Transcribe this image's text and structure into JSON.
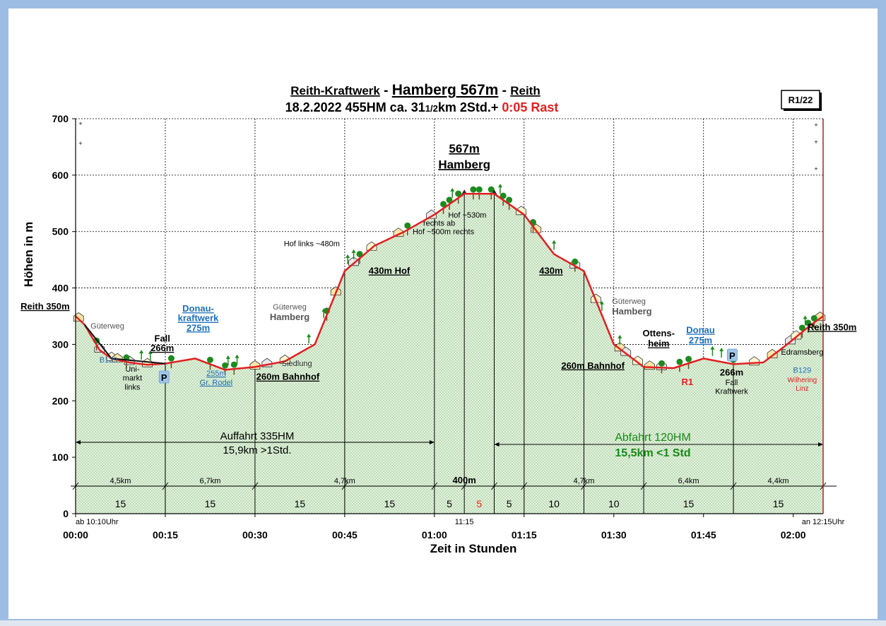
{
  "window": {
    "frame_color": "#9ebde5",
    "background": "#ffffff"
  },
  "chart_data": {
    "type": "area",
    "title": {
      "part1": "Reith-Kraftwerk",
      "sep1": " - ",
      "part2": "Hamberg 567m",
      "sep2": " - ",
      "part3": "Reith"
    },
    "subtitle": {
      "text": "18.2.2022   455HM    ca. 31",
      "frac": "1/2",
      "km": "km     2Std.+ ",
      "rast": "0:05 Rast"
    },
    "tour_id": "R1/22",
    "ylabel": "Höhen in m",
    "xlabel": "Zeit in Stunden",
    "ylim": [
      0,
      700
    ],
    "xlim_min": [
      0,
      125
    ],
    "y_ticks": [
      "0",
      "100",
      "200",
      "300",
      "400",
      "500",
      "600",
      "700"
    ],
    "x_ticks": [
      {
        "min": 0,
        "label": "00:00"
      },
      {
        "min": 15,
        "label": "00:15"
      },
      {
        "min": 30,
        "label": "00:30"
      },
      {
        "min": 45,
        "label": "00:45"
      },
      {
        "min": 60,
        "label": "01:00"
      },
      {
        "min": 75,
        "label": "01:15"
      },
      {
        "min": 90,
        "label": "01:30"
      },
      {
        "min": 105,
        "label": "01:45"
      },
      {
        "min": 120,
        "label": "02:00"
      }
    ],
    "time_notes": [
      {
        "min": 0,
        "label": "ab 10:10Uhr"
      },
      {
        "min": 65,
        "label": "11:15"
      },
      {
        "min": 125,
        "label": "an 12:15Uhr"
      }
    ],
    "series": [
      {
        "color": "#e02020",
        "x": [
          0,
          1.5,
          4,
          6,
          9,
          12,
          15,
          20,
          25,
          30,
          35,
          40,
          45,
          50,
          55,
          60,
          65,
          70,
          75,
          80,
          85,
          90,
          95,
          100,
          105,
          110,
          115,
          119,
          123,
          125
        ],
        "y": [
          350,
          335,
          290,
          275,
          268,
          264,
          266,
          275,
          255,
          260,
          270,
          300,
          430,
          475,
          500,
          530,
          567,
          567,
          530,
          460,
          430,
          300,
          260,
          258,
          275,
          265,
          268,
          300,
          335,
          350
        ]
      }
    ],
    "segments": {
      "boundaries_min": [
        0,
        15,
        30,
        45,
        60,
        65,
        70,
        75,
        85,
        95,
        110,
        125
      ],
      "distances": [
        {
          "min": 7.5,
          "label": "4,5km"
        },
        {
          "min": 22.5,
          "label": "6,7km"
        },
        {
          "min": 45,
          "label": "4,7km"
        },
        {
          "min": 65,
          "label": "400m"
        },
        {
          "min": 85,
          "label": "4,7km"
        },
        {
          "min": 102.5,
          "label": "6,4km"
        },
        {
          "min": 117.5,
          "label": "4,4km"
        }
      ],
      "durations": [
        {
          "min": 7.5,
          "label": "15",
          "color": "#000000"
        },
        {
          "min": 22.5,
          "label": "15",
          "color": "#000000"
        },
        {
          "min": 37.5,
          "label": "15",
          "color": "#000000"
        },
        {
          "min": 52.5,
          "label": "15",
          "color": "#000000"
        },
        {
          "min": 62.5,
          "label": "5",
          "color": "#000000"
        },
        {
          "min": 67.5,
          "label": "5",
          "color": "#e03010"
        },
        {
          "min": 72.5,
          "label": "5",
          "color": "#000000"
        },
        {
          "min": 80,
          "label": "10",
          "color": "#000000"
        },
        {
          "min": 90,
          "label": "10",
          "color": "#000000"
        },
        {
          "min": 102.5,
          "label": "15",
          "color": "#000000"
        },
        {
          "min": 117.5,
          "label": "15",
          "color": "#000000"
        }
      ]
    },
    "summaries": {
      "ascent": {
        "line1": "Auffahrt  335HM",
        "line2": "15,9km   >1Std.",
        "color": "#000000",
        "x_range_min": [
          0,
          60
        ]
      },
      "descent": {
        "line1": "Abfahrt 120HM",
        "line2": "15,5km   <1 Std",
        "color": "#1a8a1a",
        "x_range_min": [
          70,
          125
        ]
      }
    },
    "annotations": [
      {
        "min": -1,
        "alt": 362,
        "text": "Reith 350m",
        "color": "#000000",
        "bold": true,
        "underline": true,
        "size": 13,
        "anchor": "end"
      },
      {
        "min": 2.5,
        "alt": 328,
        "text": "Güterweg",
        "color": "#555555",
        "bold": false,
        "underline": false,
        "size": 11,
        "anchor": "start"
      },
      {
        "min": 5.5,
        "alt": 268,
        "text": "B129",
        "color": "#1f6fb8",
        "bold": false,
        "underline": false,
        "size": 11,
        "anchor": "middle"
      },
      {
        "min": 9.5,
        "alt": 252,
        "text": "Uni-",
        "color": "#000000",
        "bold": false,
        "underline": false,
        "size": 11,
        "anchor": "middle"
      },
      {
        "min": 9.5,
        "alt": 236,
        "text": "markt",
        "color": "#000000",
        "bold": false,
        "underline": false,
        "size": 11,
        "anchor": "middle"
      },
      {
        "min": 9.5,
        "alt": 220,
        "text": "links",
        "color": "#000000",
        "bold": false,
        "underline": false,
        "size": 11,
        "anchor": "middle"
      },
      {
        "min": 14.5,
        "alt": 305,
        "text": "Fall",
        "color": "#000000",
        "bold": true,
        "underline": false,
        "size": 13,
        "anchor": "middle"
      },
      {
        "min": 14.5,
        "alt": 288,
        "text": "266m",
        "color": "#000000",
        "bold": true,
        "underline": true,
        "size": 13,
        "anchor": "middle"
      },
      {
        "min": 20.5,
        "alt": 358,
        "text": "Donau-",
        "color": "#1f6fb8",
        "bold": true,
        "underline": true,
        "size": 13,
        "anchor": "middle"
      },
      {
        "min": 20.5,
        "alt": 341,
        "text": "kraftwerk",
        "color": "#1f6fb8",
        "bold": true,
        "underline": true,
        "size": 13,
        "anchor": "middle"
      },
      {
        "min": 20.5,
        "alt": 324,
        "text": "275m",
        "color": "#1f6fb8",
        "bold": true,
        "underline": true,
        "size": 13,
        "anchor": "middle"
      },
      {
        "min": 23.5,
        "alt": 244,
        "text": "255m",
        "color": "#1f6fb8",
        "bold": false,
        "underline": true,
        "size": 11,
        "anchor": "middle"
      },
      {
        "min": 23.5,
        "alt": 228,
        "text": "Gr. Rodel",
        "color": "#1f6fb8",
        "bold": false,
        "underline": true,
        "size": 11,
        "anchor": "middle"
      },
      {
        "min": 35.5,
        "alt": 237,
        "text": "260m Bahnhof",
        "color": "#000000",
        "bold": true,
        "underline": true,
        "size": 13,
        "anchor": "middle"
      },
      {
        "min": 35.8,
        "alt": 362,
        "text": "Güterweg",
        "color": "#555555",
        "bold": false,
        "underline": false,
        "size": 11,
        "anchor": "middle"
      },
      {
        "min": 35.8,
        "alt": 343,
        "text": "Hamberg",
        "color": "#555555",
        "bold": true,
        "underline": false,
        "size": 13,
        "anchor": "middle"
      },
      {
        "min": 37.0,
        "alt": 262,
        "text": "Siedlung",
        "color": "#333333",
        "bold": false,
        "underline": false,
        "size": 11,
        "anchor": "middle"
      },
      {
        "min": 39.5,
        "alt": 474,
        "text": "Hof links ~480m",
        "color": "#000000",
        "bold": false,
        "underline": false,
        "size": 11,
        "anchor": "middle"
      },
      {
        "min": 49.0,
        "alt": 425,
        "text": "430m Hof",
        "color": "#000000",
        "bold": true,
        "underline": true,
        "size": 13,
        "anchor": "start"
      },
      {
        "min": 60.8,
        "alt": 510,
        "text": "rechts ab",
        "color": "#000000",
        "bold": false,
        "underline": false,
        "size": 11,
        "anchor": "middle"
      },
      {
        "min": 61.5,
        "alt": 495,
        "text": "Hof ~500m rechts",
        "color": "#000000",
        "bold": false,
        "underline": false,
        "size": 11,
        "anchor": "middle"
      },
      {
        "min": 65.5,
        "alt": 525,
        "text": "Hof ~530m",
        "color": "#000000",
        "bold": false,
        "underline": false,
        "size": 11,
        "anchor": "middle"
      },
      {
        "min": 65,
        "alt": 640,
        "text": "567m",
        "color": "#000000",
        "bold": true,
        "underline": true,
        "size": 17,
        "anchor": "middle"
      },
      {
        "min": 65,
        "alt": 612,
        "text": "Hamberg",
        "color": "#000000",
        "bold": true,
        "underline": true,
        "size": 17,
        "anchor": "middle"
      },
      {
        "min": 79.5,
        "alt": 425,
        "text": "430m",
        "color": "#000000",
        "bold": true,
        "underline": true,
        "size": 13,
        "anchor": "middle"
      },
      {
        "min": 89.7,
        "alt": 372,
        "text": "Güterweg",
        "color": "#555555",
        "bold": false,
        "underline": false,
        "size": 11,
        "anchor": "start"
      },
      {
        "min": 89.7,
        "alt": 353,
        "text": "Hamberg",
        "color": "#555555",
        "bold": true,
        "underline": false,
        "size": 13,
        "anchor": "start"
      },
      {
        "min": 86.5,
        "alt": 257,
        "text": "260m Bahnhof",
        "color": "#000000",
        "bold": true,
        "underline": true,
        "size": 13,
        "anchor": "middle"
      },
      {
        "min": 97.5,
        "alt": 314,
        "text": "Ottens-",
        "color": "#000000",
        "bold": true,
        "underline": false,
        "size": 13,
        "anchor": "middle"
      },
      {
        "min": 97.5,
        "alt": 296,
        "text": "heim",
        "color": "#000000",
        "bold": true,
        "underline": true,
        "size": 13,
        "anchor": "middle"
      },
      {
        "min": 104.5,
        "alt": 320,
        "text": "Donau",
        "color": "#1f6fb8",
        "bold": true,
        "underline": true,
        "size": 13,
        "anchor": "middle"
      },
      {
        "min": 104.5,
        "alt": 302,
        "text": "275m",
        "color": "#1f6fb8",
        "bold": true,
        "underline": true,
        "size": 13,
        "anchor": "middle"
      },
      {
        "min": 102.3,
        "alt": 228,
        "text": "R1",
        "color": "#e02020",
        "bold": true,
        "underline": false,
        "size": 13,
        "anchor": "middle"
      },
      {
        "min": 109.7,
        "alt": 245,
        "text": "266m",
        "color": "#000000",
        "bold": true,
        "underline": false,
        "size": 13,
        "anchor": "middle"
      },
      {
        "min": 109.7,
        "alt": 228,
        "text": "Fall",
        "color": "#000000",
        "bold": false,
        "underline": false,
        "size": 11,
        "anchor": "middle"
      },
      {
        "min": 109.7,
        "alt": 212,
        "text": "Kraftwerk",
        "color": "#000000",
        "bold": false,
        "underline": false,
        "size": 11,
        "anchor": "middle"
      },
      {
        "min": 126.5,
        "alt": 325,
        "text": "Reith 350m",
        "color": "#000000",
        "bold": true,
        "underline": true,
        "size": 13,
        "anchor": "middle"
      },
      {
        "min": 121.5,
        "alt": 282,
        "text": "Edramsberg",
        "color": "#000000",
        "bold": false,
        "underline": false,
        "size": 11,
        "anchor": "middle"
      },
      {
        "min": 121.5,
        "alt": 250,
        "text": "B129",
        "color": "#1f6fb8",
        "bold": false,
        "underline": false,
        "size": 11,
        "anchor": "middle"
      },
      {
        "min": 121.5,
        "alt": 233,
        "text": "Wilhering",
        "color": "#e02020",
        "bold": false,
        "underline": false,
        "size": 10,
        "anchor": "middle"
      },
      {
        "min": 121.5,
        "alt": 218,
        "text": "Linz",
        "color": "#e02020",
        "bold": false,
        "underline": false,
        "size": 10,
        "anchor": "middle"
      }
    ],
    "parking": [
      {
        "min": 14.8,
        "label": "P"
      },
      {
        "min": 109.8,
        "label": "P"
      }
    ],
    "houses_min": [
      0.5,
      4,
      6,
      7,
      9,
      12,
      30,
      32,
      35,
      43.5,
      46.5,
      49.5,
      54,
      59.5,
      74.5,
      77,
      83.5,
      87,
      91,
      92,
      94,
      96,
      98,
      113.5,
      116.5,
      119.5,
      120.5,
      124.5
    ],
    "trees_min": [
      3.5,
      8.5,
      16,
      22.5,
      25,
      26.5,
      42,
      47.5,
      55.5,
      61.5,
      62.5,
      64,
      66.5,
      67.5,
      69.5,
      71.5,
      72.5,
      76.5,
      83.5,
      98,
      101,
      102.5,
      110,
      121.5,
      122.5,
      123.5
    ],
    "arrows_up_min": [
      11,
      12.5,
      25.5,
      27,
      39,
      41.5,
      45.5,
      46.5,
      63,
      71,
      80,
      88,
      91,
      106.5,
      108,
      122
    ],
    "colors": {
      "line": "#e02020",
      "fill": "#d8ecd2",
      "grid": "#000000"
    }
  }
}
